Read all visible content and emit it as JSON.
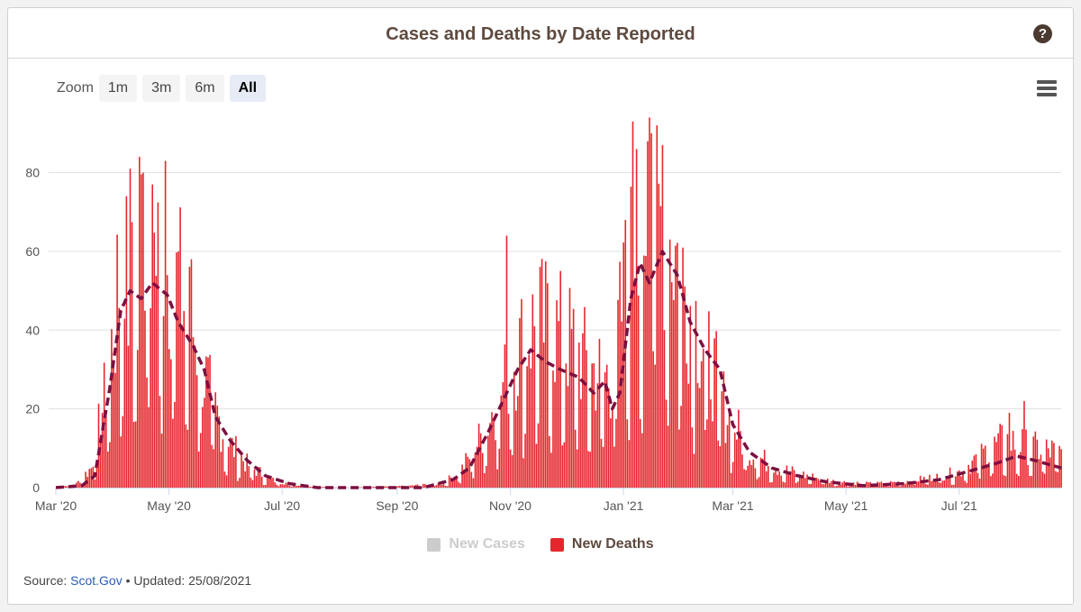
{
  "header": {
    "title": "Cases and Deaths by Date Reported",
    "help_icon": "?"
  },
  "zoom": {
    "label": "Zoom",
    "buttons": [
      "1m",
      "3m",
      "6m",
      "All"
    ],
    "active": "All"
  },
  "legend": {
    "items": [
      {
        "name": "New Cases",
        "color": "#cccccc",
        "text_color": "#cccccc",
        "visible": false
      },
      {
        "name": "New Deaths",
        "color": "#e5272d",
        "text_color": "#5e4a3f",
        "visible": true
      }
    ]
  },
  "source": {
    "prefix": "Source:",
    "link_text": "Scot.Gov",
    "separator": "•",
    "updated": "Updated: 25/08/2021"
  },
  "chart_data": {
    "type": "bar",
    "title": "Cases and Deaths by Date Reported",
    "x_range": [
      "2020-03-01",
      "2021-08-25"
    ],
    "ylim": [
      0,
      95
    ],
    "y_ticks": [
      0,
      20,
      40,
      60,
      80
    ],
    "x_tick_labels": [
      "Mar '20",
      "May '20",
      "Jul '20",
      "Sep '20",
      "Nov '20",
      "Jan '21",
      "Mar '21",
      "May '21",
      "Jul '21"
    ],
    "x_tick_dates": [
      "2020-03-01",
      "2020-05-01",
      "2020-07-01",
      "2020-09-01",
      "2020-11-01",
      "2021-01-01",
      "2021-03-01",
      "2021-05-01",
      "2021-07-01"
    ],
    "bar_color": "#e5272d",
    "line_color": "#7b1040",
    "series": [
      {
        "name": "New Deaths",
        "kind": "daily_bars",
        "profile": [
          [
            "2020-03-01",
            0
          ],
          [
            "2020-03-12",
            1
          ],
          [
            "2020-03-20",
            5
          ],
          [
            "2020-03-28",
            25
          ],
          [
            "2020-04-04",
            48
          ],
          [
            "2020-04-12",
            55
          ],
          [
            "2020-04-20",
            60
          ],
          [
            "2020-04-28",
            58
          ],
          [
            "2020-05-06",
            52
          ],
          [
            "2020-05-14",
            40
          ],
          [
            "2020-05-22",
            25
          ],
          [
            "2020-06-01",
            12
          ],
          [
            "2020-06-12",
            6
          ],
          [
            "2020-06-25",
            2
          ],
          [
            "2020-07-10",
            0.5
          ],
          [
            "2020-08-01",
            0
          ],
          [
            "2020-09-01",
            0.3
          ],
          [
            "2020-09-25",
            1
          ],
          [
            "2020-10-05",
            4
          ],
          [
            "2020-10-15",
            12
          ],
          [
            "2020-10-25",
            22
          ],
          [
            "2020-11-05",
            35
          ],
          [
            "2020-11-15",
            42
          ],
          [
            "2020-11-25",
            40
          ],
          [
            "2020-12-05",
            36
          ],
          [
            "2020-12-15",
            30
          ],
          [
            "2020-12-25",
            28
          ],
          [
            "2021-01-04",
            55
          ],
          [
            "2021-01-12",
            68
          ],
          [
            "2021-01-20",
            70
          ],
          [
            "2021-01-28",
            62
          ],
          [
            "2021-02-05",
            48
          ],
          [
            "2021-02-15",
            35
          ],
          [
            "2021-02-25",
            20
          ],
          [
            "2021-03-10",
            9
          ],
          [
            "2021-03-25",
            5
          ],
          [
            "2021-04-10",
            3
          ],
          [
            "2021-04-25",
            1.5
          ],
          [
            "2021-05-15",
            1
          ],
          [
            "2021-06-01",
            1.5
          ],
          [
            "2021-06-15",
            2.5
          ],
          [
            "2021-07-01",
            4
          ],
          [
            "2021-07-15",
            9
          ],
          [
            "2021-07-25",
            12
          ],
          [
            "2021-08-10",
            10
          ],
          [
            "2021-08-25",
            9
          ]
        ],
        "peaks": [
          [
            "2020-04-08",
            74
          ],
          [
            "2020-04-10",
            81
          ],
          [
            "2020-04-15",
            84
          ],
          [
            "2020-04-17",
            80
          ],
          [
            "2020-04-22",
            77
          ],
          [
            "2020-04-29",
            83
          ],
          [
            "2020-05-06",
            60
          ],
          [
            "2020-05-13",
            58
          ],
          [
            "2020-10-30",
            64
          ],
          [
            "2021-01-02",
            68
          ],
          [
            "2021-01-06",
            93
          ],
          [
            "2021-01-08",
            86
          ],
          [
            "2021-01-14",
            88
          ],
          [
            "2021-01-15",
            94
          ],
          [
            "2021-01-16",
            90
          ],
          [
            "2021-01-19",
            92
          ],
          [
            "2021-01-22",
            87
          ],
          [
            "2021-08-05",
            22
          ],
          [
            "2021-07-28",
            19
          ]
        ]
      },
      {
        "name": "7-day average",
        "kind": "dashed_line",
        "points": [
          [
            "2020-03-01",
            0
          ],
          [
            "2020-03-15",
            0.5
          ],
          [
            "2020-03-22",
            3
          ],
          [
            "2020-03-30",
            25
          ],
          [
            "2020-04-05",
            45
          ],
          [
            "2020-04-10",
            50
          ],
          [
            "2020-04-16",
            48
          ],
          [
            "2020-04-22",
            52
          ],
          [
            "2020-04-30",
            49
          ],
          [
            "2020-05-06",
            42
          ],
          [
            "2020-05-14",
            36
          ],
          [
            "2020-05-20",
            30
          ],
          [
            "2020-05-26",
            18
          ],
          [
            "2020-06-03",
            12
          ],
          [
            "2020-06-12",
            7
          ],
          [
            "2020-06-22",
            3
          ],
          [
            "2020-07-05",
            1
          ],
          [
            "2020-07-20",
            0
          ],
          [
            "2020-09-15",
            0
          ],
          [
            "2020-10-01",
            2
          ],
          [
            "2020-10-10",
            5
          ],
          [
            "2020-10-20",
            14
          ],
          [
            "2020-10-28",
            22
          ],
          [
            "2020-11-05",
            30
          ],
          [
            "2020-11-12",
            35
          ],
          [
            "2020-11-20",
            32
          ],
          [
            "2020-11-28",
            30
          ],
          [
            "2020-12-08",
            28
          ],
          [
            "2020-12-16",
            24
          ],
          [
            "2020-12-22",
            27
          ],
          [
            "2020-12-26",
            20
          ],
          [
            "2020-12-30",
            24
          ],
          [
            "2021-01-05",
            48
          ],
          [
            "2021-01-10",
            57
          ],
          [
            "2021-01-15",
            52
          ],
          [
            "2021-01-22",
            60
          ],
          [
            "2021-01-30",
            54
          ],
          [
            "2021-02-06",
            42
          ],
          [
            "2021-02-14",
            35
          ],
          [
            "2021-02-22",
            30
          ],
          [
            "2021-03-01",
            16
          ],
          [
            "2021-03-10",
            9
          ],
          [
            "2021-03-22",
            5
          ],
          [
            "2021-04-05",
            3
          ],
          [
            "2021-04-20",
            1.5
          ],
          [
            "2021-05-10",
            0.5
          ],
          [
            "2021-06-01",
            1
          ],
          [
            "2021-06-20",
            2
          ],
          [
            "2021-07-05",
            4
          ],
          [
            "2021-07-20",
            6
          ],
          [
            "2021-08-01",
            8
          ],
          [
            "2021-08-10",
            7
          ],
          [
            "2021-08-25",
            5
          ]
        ]
      }
    ]
  }
}
